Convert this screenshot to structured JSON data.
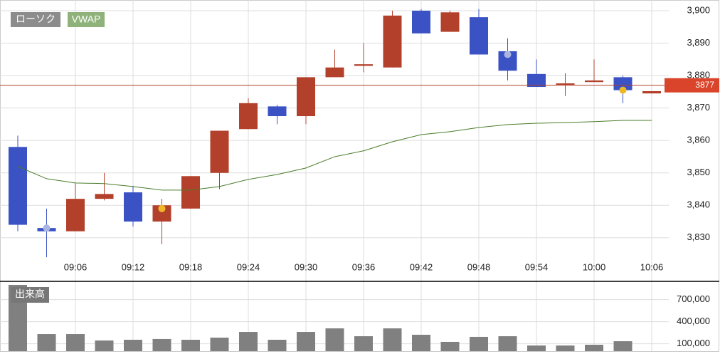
{
  "chart_data": [
    {
      "type": "candlestick",
      "categories": [
        null,
        null,
        "09:06",
        null,
        "09:12",
        null,
        "09:18",
        null,
        "09:24",
        null,
        "09:30",
        null,
        "09:36",
        null,
        "09:42",
        null,
        "09:48",
        null,
        "09:54",
        null,
        "10:00",
        null,
        "10:06"
      ],
      "series": [
        {
          "name": "ローソク",
          "up_color": "#b3402a",
          "down_color": "#3a52c4",
          "legend_color": "#8c8c8c",
          "open": [
            3858,
            3833,
            3832,
            3842,
            3844,
            3835,
            3839,
            3850,
            3863.5,
            3870.5,
            3867.5,
            3879.5,
            3883,
            3882.5,
            3900,
            3893.5,
            3898,
            3887.5,
            3880.5,
            3877.2,
            3878,
            3879.5,
            3874.5
          ],
          "high": [
            3861.5,
            3839,
            3847,
            3850,
            3846,
            3842,
            3849,
            3863,
            3873,
            3871,
            3879.5,
            3888,
            3890,
            3900,
            3900.5,
            3900,
            3900.5,
            3891.5,
            3885,
            3880.7,
            3885,
            3880,
            3875.2
          ],
          "low": [
            3832,
            3824,
            3832,
            3841.5,
            3833.5,
            3828,
            3839,
            3845,
            3863.5,
            3865,
            3865,
            3879.5,
            3881,
            3882.5,
            3893,
            3893.5,
            3886.5,
            3878.5,
            3876.5,
            3873.7,
            3878,
            3871.5,
            3874.5
          ],
          "close": [
            3834,
            3832,
            3842,
            3843.5,
            3835,
            3840,
            3849,
            3863,
            3871.5,
            3867.5,
            3879.5,
            3882.5,
            3883.5,
            3898.5,
            3893,
            3899.5,
            3886.5,
            3881.5,
            3876.5,
            3877.6,
            3878.5,
            3875.5,
            3875.2
          ]
        },
        {
          "name": "VWAP",
          "type": "line",
          "color": "#4a7d2a",
          "legend_color": "#8fb27a",
          "values": [
            3852,
            3848.2,
            3846.9,
            3846.7,
            3845.8,
            3844.7,
            3844.7,
            3845.8,
            3848,
            3849.5,
            3851.5,
            3855,
            3856.8,
            3859.6,
            3861.8,
            3862.7,
            3864,
            3864.9,
            3865.3,
            3865.5,
            3865.8,
            3866.2,
            3866.2
          ]
        }
      ],
      "markers": [
        {
          "index": 1,
          "value": 3833,
          "color": "#a9b4e0"
        },
        {
          "index": 5,
          "value": 3839,
          "color": "#f0b828"
        },
        {
          "index": 17,
          "value": 3886.5,
          "color": "#a9b4e0"
        },
        {
          "index": 21,
          "value": 3875.5,
          "color": "#f0b828"
        }
      ],
      "last_price": 3877,
      "last_price_color": "#d9442a",
      "ylim": [
        3817,
        3903.3
      ],
      "yticks": [
        {
          "value": 3830,
          "label": "3,830"
        },
        {
          "value": 3840,
          "label": "3,840"
        },
        {
          "value": 3850,
          "label": "3,850"
        },
        {
          "value": 3860,
          "label": "3,860"
        },
        {
          "value": 3870,
          "label": "3,870"
        },
        {
          "value": 3880,
          "label": "3,880"
        },
        {
          "value": 3890,
          "label": "3,890"
        },
        {
          "value": 3900,
          "label": "3,900"
        }
      ],
      "grid": true
    },
    {
      "type": "bar",
      "title": "出来高",
      "color": "#808080",
      "values": [
        900000,
        232000,
        232000,
        145000,
        155000,
        165000,
        155000,
        184000,
        261000,
        155000,
        261000,
        310000,
        203000,
        310000,
        223000,
        126000,
        194000,
        203000,
        77000,
        77000,
        87000,
        135000,
        null
      ],
      "ylim": [
        0,
        900000
      ],
      "yticks": [
        {
          "value": 100000,
          "label": "100,000"
        },
        {
          "value": 400000,
          "label": "400,000"
        },
        {
          "value": 700000,
          "label": "700,000"
        }
      ],
      "grid": true
    }
  ]
}
